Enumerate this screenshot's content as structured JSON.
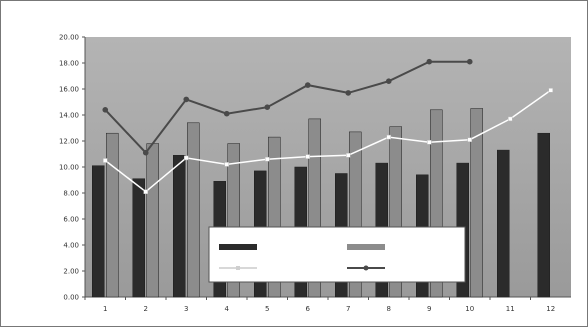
{
  "chart_data": {
    "type": "bar",
    "title": "",
    "xlabel": "",
    "ylabel": "",
    "categories": [
      "1",
      "2",
      "3",
      "4",
      "5",
      "6",
      "7",
      "8",
      "9",
      "10",
      "11",
      "12"
    ],
    "ylim": [
      0,
      20
    ],
    "y_ticks": [
      "0.00",
      "2.00",
      "4.00",
      "6.00",
      "8.00",
      "10.00",
      "12.00",
      "14.00",
      "16.00",
      "18.00",
      "20.00"
    ],
    "grid": false,
    "legend_position": "bottom-center",
    "series": [
      {
        "type": "bar",
        "color": "#2b2b2b",
        "values": [
          10.1,
          9.1,
          10.9,
          8.9,
          9.7,
          10.0,
          9.5,
          10.3,
          9.4,
          10.3,
          11.3,
          12.6
        ]
      },
      {
        "type": "bar",
        "color": "#8c8c8c",
        "values": [
          12.6,
          11.8,
          13.4,
          11.8,
          12.3,
          13.7,
          12.7,
          13.1,
          14.4,
          14.5,
          null,
          null
        ]
      },
      {
        "type": "line",
        "color": "#ffffff",
        "marker": "square",
        "values": [
          10.5,
          8.1,
          10.7,
          10.2,
          10.6,
          10.8,
          10.9,
          12.3,
          11.9,
          12.1,
          13.7,
          15.9
        ]
      },
      {
        "type": "line",
        "color": "#4a4a4a",
        "marker": "circle",
        "values": [
          14.4,
          11.1,
          15.2,
          14.1,
          14.6,
          16.3,
          15.7,
          16.6,
          18.1,
          18.1,
          null,
          null
        ]
      }
    ]
  },
  "colors": {
    "plot_bg": "#a6a6a6",
    "bar_dark": "#2b2b2b",
    "bar_light": "#8c8c8c"
  }
}
